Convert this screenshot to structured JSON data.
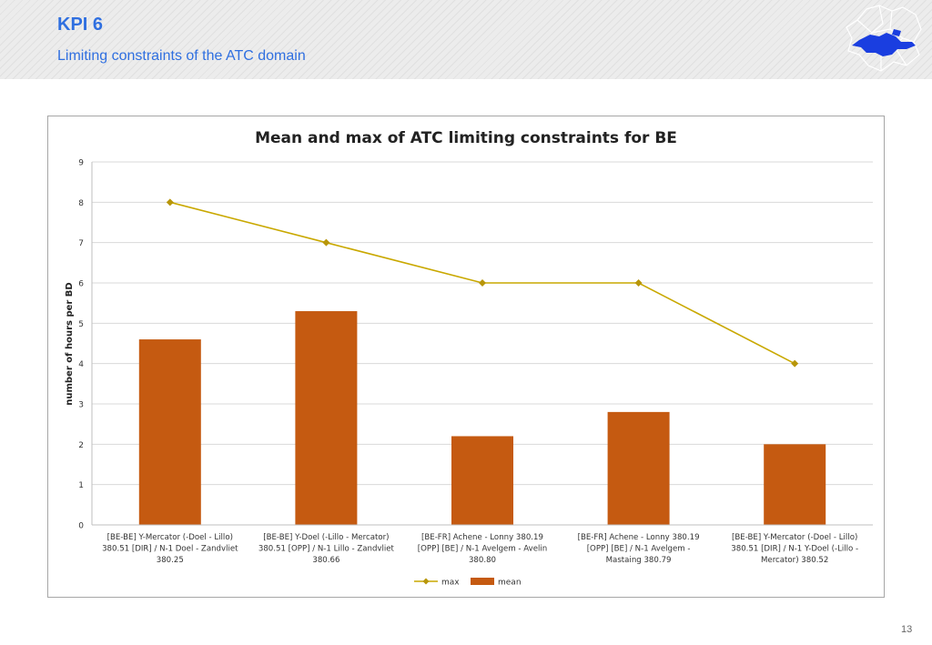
{
  "header": {
    "title": "KPI 6",
    "subtitle": "Limiting constraints of the ATC domain"
  },
  "logo": {
    "icon": "europe-map-icon"
  },
  "page_number": "13",
  "colors": {
    "accent": "#2f6fe0",
    "bar": "#c55a11",
    "line": "#c9a800",
    "marker": "#b8960a"
  },
  "chart_data": {
    "type": "bar",
    "title": "Mean and max of ATC limiting constraints for BE",
    "xlabel": "",
    "ylabel": "number of hours per BD",
    "ylim": [
      0,
      9
    ],
    "yticks": [
      0,
      1,
      2,
      3,
      4,
      5,
      6,
      7,
      8,
      9
    ],
    "grid": true,
    "legend_position": "bottom",
    "categories": [
      [
        "[BE-BE] Y-Mercator (-Doel - Lillo)",
        "380.51 [DIR] / N-1 Doel - Zandvliet",
        "380.25"
      ],
      [
        "[BE-BE] Y-Doel (-Lillo - Mercator)",
        "380.51 [OPP] / N-1 Lillo - Zandvliet",
        "380.66"
      ],
      [
        "[BE-FR] Achene - Lonny 380.19",
        "[OPP] [BE] / N-1 Avelgem - Avelin",
        "380.80"
      ],
      [
        "[BE-FR] Achene - Lonny 380.19",
        "[OPP] [BE] / N-1 Avelgem -",
        "Mastaing 380.79"
      ],
      [
        "[BE-BE] Y-Mercator (-Doel - Lillo)",
        "380.51 [DIR] / N-1 Y-Doel (-Lillo -",
        "Mercator) 380.52"
      ]
    ],
    "series": [
      {
        "name": "max",
        "type": "line",
        "values": [
          8,
          7,
          6,
          6,
          4
        ]
      },
      {
        "name": "mean",
        "type": "bar",
        "values": [
          4.6,
          5.3,
          2.2,
          2.8,
          2.0
        ]
      }
    ]
  }
}
